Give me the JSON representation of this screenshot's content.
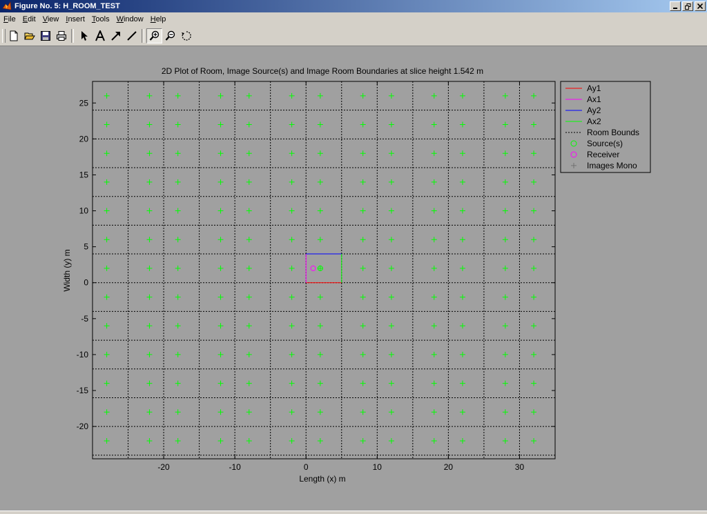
{
  "window": {
    "title": "Figure No. 5: H_ROOM_TEST"
  },
  "menu": {
    "items": [
      {
        "label": "File",
        "mnemonic": "F",
        "rest": "ile"
      },
      {
        "label": "Edit",
        "mnemonic": "E",
        "rest": "dit"
      },
      {
        "label": "View",
        "mnemonic": "V",
        "rest": "iew"
      },
      {
        "label": "Insert",
        "mnemonic": "I",
        "rest": "nsert"
      },
      {
        "label": "Tools",
        "mnemonic": "T",
        "rest": "ools"
      },
      {
        "label": "Window",
        "mnemonic": "W",
        "rest": "indow"
      },
      {
        "label": "Help",
        "mnemonic": "H",
        "rest": "elp"
      }
    ]
  },
  "toolbar": {
    "buttons": [
      "new-file-icon",
      "open-file-icon",
      "save-icon",
      "print-icon",
      "arrow-select-icon",
      "insert-text-icon",
      "insert-arrow-icon",
      "insert-line-icon",
      "zoom-in-icon",
      "zoom-out-icon",
      "rotate-3d-icon"
    ],
    "pressed": "zoom-in-icon"
  },
  "colors": {
    "figure_bg": "#a0a0a0",
    "ay1": "#ff0000",
    "ax1": "#ff00ff",
    "ay2": "#0000ff",
    "ax2": "#00ff00",
    "bounds": "#000000",
    "source": "#00ff00",
    "receiver": "#ff00ff",
    "images": "#00ff00"
  },
  "chart_data": {
    "type": "scatter",
    "title": "2D Plot of Room, Image Source(s) and Image Room Boundaries at slice height 1.542 m",
    "xlabel": "Length (x) m",
    "ylabel": "Width (y) m",
    "xlim": [
      -30,
      35
    ],
    "ylim": [
      -24.5,
      28
    ],
    "xticks": [
      -20,
      -10,
      0,
      10,
      20,
      30
    ],
    "yticks": [
      -20,
      -15,
      -10,
      -5,
      0,
      5,
      10,
      15,
      20,
      25
    ],
    "grid": false,
    "legend_position": "outside-top-right",
    "legend": [
      "Ay1",
      "Ax1",
      "Ay2",
      "Ax2",
      "Room Bounds",
      "Source(s)",
      "Receiver",
      "Images Mono"
    ],
    "room": {
      "x": [
        0,
        5
      ],
      "y": [
        0,
        4
      ]
    },
    "room_bounds_x": [
      -25,
      -20,
      -15,
      -10,
      -5,
      0,
      5,
      10,
      15,
      20,
      25,
      30
    ],
    "room_bounds_y": [
      -24,
      -20,
      -16,
      -12,
      -8,
      -4,
      0,
      4,
      8,
      12,
      16,
      20,
      24,
      28
    ],
    "source": {
      "x": 2,
      "y": 2
    },
    "receiver": {
      "x": 1,
      "y": 2
    },
    "image_x": [
      -28,
      -22,
      -18,
      -12,
      -8,
      -2,
      2,
      8,
      12,
      18,
      22,
      28,
      32
    ],
    "image_y": [
      -22,
      -18,
      -14,
      -10,
      -6,
      -2,
      2,
      6,
      10,
      14,
      18,
      22,
      26
    ]
  }
}
